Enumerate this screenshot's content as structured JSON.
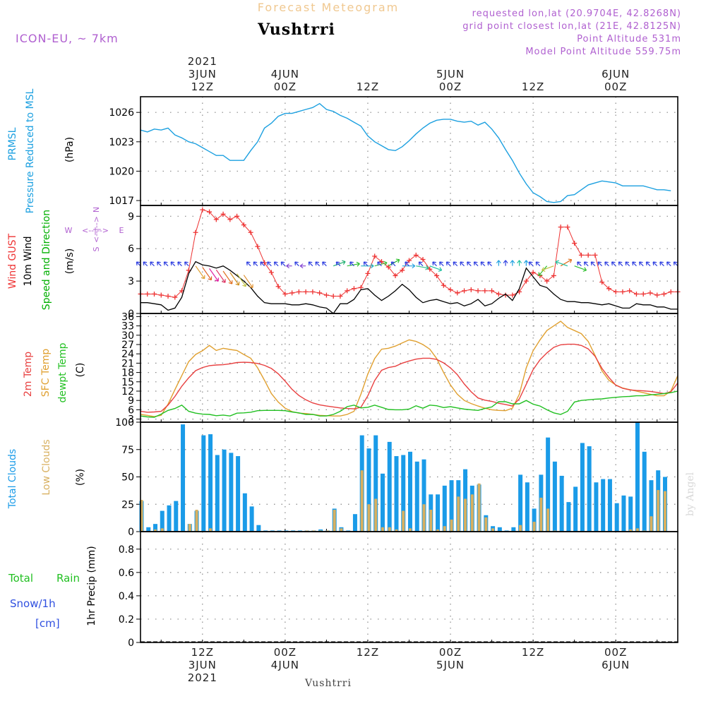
{
  "header": {
    "title_small": "Forecast Meteogram",
    "location": "Vushtrri",
    "model": "ICON-EU, ~ 7km",
    "requested": "requested lon,lat (20.9704E, 42.8268N)",
    "grid_point": "grid point closest lon,lat (21E, 42.8125N)",
    "point_altitude": "Point Altitude 531m",
    "model_altitude": "Model Point Altitude 559.75m",
    "footer_location": "Vushtrri",
    "watermark": "by Angel"
  },
  "time_axis": {
    "top_labels": [
      {
        "hour": 9,
        "lines": [
          "2021",
          "3JUN",
          "12Z"
        ]
      },
      {
        "hour": 21,
        "lines": [
          "4JUN",
          "00Z"
        ]
      },
      {
        "hour": 33,
        "lines": [
          "12Z"
        ]
      },
      {
        "hour": 45,
        "lines": [
          "5JUN",
          "00Z"
        ]
      },
      {
        "hour": 57,
        "lines": [
          "12Z"
        ]
      },
      {
        "hour": 69,
        "lines": [
          "6JUN",
          "00Z"
        ]
      }
    ],
    "bottom_labels": [
      {
        "hour": 9,
        "lines": [
          "12Z",
          "3JUN",
          "2021"
        ]
      },
      {
        "hour": 21,
        "lines": [
          "00Z",
          "4JUN"
        ]
      },
      {
        "hour": 33,
        "lines": [
          "12Z"
        ]
      },
      {
        "hour": 45,
        "lines": [
          "00Z",
          "5JUN"
        ]
      },
      {
        "hour": 57,
        "lines": [
          "12Z"
        ]
      },
      {
        "hour": 69,
        "lines": [
          "00Z",
          "6JUN"
        ]
      }
    ]
  },
  "colors": {
    "pressure": "#1ca0e0",
    "gust": "#ee3333",
    "wind": "#000000",
    "wind_dir_label": "#00b000",
    "temp2m": "#e84040",
    "sfc_temp": "#e0a030",
    "dewpt": "#22c022",
    "total_clouds": "#1a9be8",
    "low_clouds": "#d8b060",
    "rain_label": "#22c022",
    "snow_label": "#3050e0",
    "purple": "#b060d0",
    "header_orange": "#f0c890",
    "watermark": "#d8d8d8"
  },
  "labels": {
    "pressure": [
      "PRMSL",
      "Pressure Reduced to MSL"
    ],
    "pressure_unit": "(hPa)",
    "wind": [
      "Wind GUST",
      "10m Wind",
      "Speed and Direction"
    ],
    "wind_unit": "(m/s)",
    "compass": {
      "n": "N",
      "s": "S",
      "w": "W",
      "e": "E"
    },
    "temp": [
      "2m Temp",
      "SFC Temp",
      "dewpt Temp"
    ],
    "temp_unit": "(C)",
    "clouds": [
      "Total Clouds",
      "Low Clouds"
    ],
    "clouds_unit": "(%)",
    "precip": [
      "Total",
      "Rain",
      "Snow/1h",
      "[cm]"
    ],
    "precip_unit": "1hr Precip (mm)"
  },
  "chart_data": [
    {
      "type": "line",
      "name": "pressure",
      "series": [
        {
          "name": "PRMSL",
          "values": [
            1024.2,
            1024,
            1024.3,
            1024.2,
            1024.4,
            1023.7,
            1023.4,
            1023,
            1022.8,
            1022.4,
            1022,
            1021.6,
            1021.6,
            1021.1,
            1021.1,
            1021.1,
            1022.1,
            1023,
            1024.4,
            1024.9,
            1025.6,
            1025.9,
            1025.9,
            1026.1,
            1026.3,
            1026.5,
            1026.9,
            1026.3,
            1026.1,
            1025.7,
            1025.4,
            1025,
            1024.6,
            1023.6,
            1023,
            1022.6,
            1022.2,
            1022.1,
            1022.5,
            1023.1,
            1023.8,
            1024.4,
            1024.9,
            1025.2,
            1025.3,
            1025.3,
            1025.1,
            1025,
            1025.1,
            1024.7,
            1025,
            1024.3,
            1023.4,
            1022.2,
            1021.1,
            1019.8,
            1018.7,
            1017.8,
            1017.4,
            1016.9,
            1016.8,
            1016.9,
            1017.5,
            1017.6,
            1018.1,
            1018.6,
            1018.8,
            1019,
            1018.9,
            1018.8,
            1018.5,
            1018.5,
            1018.5,
            1018.5,
            1018.3,
            1018.1,
            1018.1,
            1018.0
          ]
        }
      ],
      "ylim": [
        1016.5,
        1027.6
      ],
      "yticks": [
        1017,
        1020,
        1023,
        1026
      ]
    },
    {
      "type": "line",
      "name": "wind",
      "series": [
        {
          "name": "Wind GUST",
          "values": [
            1.8,
            1.8,
            1.8,
            1.7,
            1.6,
            1.5,
            2.1,
            4.0,
            7.5,
            9.6,
            9.4,
            8.7,
            9.2,
            8.7,
            9,
            8.2,
            7.5,
            6.2,
            4.7,
            3.8,
            2.5,
            1.8,
            1.9,
            2.0,
            2.0,
            2.0,
            1.9,
            1.7,
            1.6,
            1.6,
            2.1,
            2.3,
            2.4,
            3.7,
            5.3,
            4.8,
            4.3,
            3.5,
            4.0,
            4.9,
            5.4,
            5.0,
            4.1,
            3.5,
            2.6,
            2.2,
            1.9,
            2.1,
            2.2,
            2.1,
            2.1,
            2.1,
            1.8,
            1.7,
            1.7,
            2.0,
            3.0,
            3.8,
            3.5,
            3.0,
            3.5,
            8.0,
            8.0,
            6.5,
            5.4,
            5.4,
            5.4,
            2.9,
            2.3,
            2.0,
            2.0,
            2.1,
            1.8,
            1.8,
            1.9,
            1.7,
            1.8,
            2.0,
            2.0
          ]
        },
        {
          "name": "10m Wind",
          "values": [
            1.0,
            1.0,
            0.9,
            0.8,
            0.3,
            0.5,
            1.5,
            3.7,
            4.8,
            4.5,
            4.4,
            4.2,
            4.4,
            4.0,
            3.5,
            3.0,
            2.4,
            1.6,
            1.0,
            0.9,
            0.9,
            0.9,
            0.8,
            0.8,
            0.9,
            0.8,
            0.6,
            0.5,
            0.0,
            0.9,
            0.9,
            1.3,
            2.2,
            2.3,
            1.7,
            1.2,
            1.6,
            2.1,
            2.7,
            2.2,
            1.5,
            1.0,
            1.2,
            1.3,
            1.1,
            0.9,
            1.0,
            0.7,
            0.9,
            1.3,
            0.7,
            0.9,
            1.4,
            1.8,
            1.2,
            2.3,
            4.2,
            3.4,
            2.6,
            2.4,
            1.8,
            1.3,
            1.1,
            1.1,
            1.0,
            1.0,
            0.9,
            0.8,
            0.9,
            0.7,
            0.5,
            0.5,
            0.9,
            0.8,
            0.8,
            0.6,
            0.6,
            0.4,
            0.4
          ]
        }
      ],
      "ylim": [
        0,
        10
      ],
      "yticks": [
        0,
        3,
        6,
        9
      ]
    },
    {
      "type": "line",
      "name": "temperature",
      "series": [
        {
          "name": "2m Temp",
          "values": [
            5.5,
            5.2,
            5.3,
            5.5,
            7.5,
            10.3,
            13.6,
            16.3,
            18.6,
            19.6,
            20.2,
            20.4,
            20.5,
            20.8,
            21.2,
            21.3,
            21.2,
            20.9,
            20.3,
            19.3,
            17.6,
            15.2,
            12.6,
            10.6,
            9.2,
            8.2,
            7.6,
            7.2,
            6.9,
            6.6,
            6.4,
            6.3,
            6.8,
            10.5,
            15.4,
            18.7,
            19.6,
            20,
            21,
            21.7,
            22.3,
            22.6,
            22.6,
            22.2,
            21.1,
            19.5,
            17.3,
            14.3,
            11.8,
            9.8,
            9.1,
            8.7,
            8.1,
            7.7,
            7.2,
            9.5,
            14.2,
            18.9,
            22.1,
            24.3,
            26.1,
            26.9,
            27.1,
            27.1,
            26.7,
            25.6,
            23.2,
            19.3,
            16.4,
            13.9,
            12.9,
            12.4,
            12.2,
            12.1,
            11.9,
            11.6,
            11.2,
            11.8,
            14.6
          ]
        },
        {
          "name": "SFC Temp",
          "values": [
            4.5,
            4.2,
            3.8,
            4.2,
            7.8,
            12.5,
            17.0,
            21.5,
            23.8,
            25.0,
            26.7,
            25.1,
            25.8,
            25.4,
            25.1,
            23.8,
            22.6,
            19.5,
            15.5,
            11.2,
            8.5,
            6.5,
            5.4,
            4.9,
            4.8,
            4.5,
            4.2,
            4.1,
            4.0,
            4.0,
            4.5,
            5.5,
            11.0,
            17.5,
            22.5,
            25.5,
            25.8,
            26.5,
            27.5,
            28.5,
            28.0,
            27.0,
            25.5,
            22.5,
            18.0,
            14.0,
            11.0,
            9.0,
            8.0,
            7.2,
            6.5,
            6.0,
            5.8,
            5.7,
            6.5,
            11.0,
            19.5,
            25.0,
            28.5,
            31.5,
            33.0,
            34.5,
            32.5,
            31.5,
            30.5,
            28.0,
            23.5,
            18.5,
            15.5,
            14.0,
            13.0,
            12.5,
            12.0,
            11.5,
            11.0,
            10.5,
            10.5,
            12.0,
            17.0
          ]
        },
        {
          "name": "dewpt Temp",
          "values": [
            4.0,
            3.7,
            3.6,
            4.6,
            5.8,
            6.4,
            7.5,
            5.5,
            4.9,
            4.6,
            4.5,
            4.1,
            4.3,
            4.0,
            4.9,
            5.0,
            5.2,
            5.7,
            5.8,
            5.8,
            5.8,
            5.7,
            5.3,
            5.0,
            4.5,
            4.5,
            4.0,
            4.0,
            4.5,
            5.5,
            7.0,
            7.5,
            6.6,
            6.8,
            7.5,
            6.8,
            6.1,
            6.0,
            6.0,
            6.2,
            7.3,
            6.5,
            7.5,
            7.3,
            6.7,
            7.0,
            6.6,
            6.2,
            6.0,
            5.8,
            6.4,
            6.9,
            8.6,
            8.6,
            7.9,
            7.9,
            9.0,
            7.8,
            7.2,
            6.0,
            5.0,
            4.5,
            5.5,
            8.5,
            9.0,
            9.2,
            9.4,
            9.5,
            9.8,
            10.0,
            10.2,
            10.3,
            10.5,
            10.5,
            10.8,
            11.0,
            11.2,
            11.5,
            12.0
          ]
        }
      ],
      "ylim": [
        2,
        37
      ],
      "yticks": [
        3,
        6,
        9,
        12,
        15,
        18,
        21,
        24,
        27,
        30,
        33,
        36
      ]
    },
    {
      "type": "bar",
      "name": "clouds",
      "series": [
        {
          "name": "Total Clouds",
          "values": [
            28,
            4,
            7,
            19,
            24,
            28,
            98,
            7,
            19,
            88,
            89,
            70,
            75,
            72,
            69,
            35,
            23,
            6,
            1,
            1,
            1,
            1,
            1,
            1,
            1,
            1,
            2,
            1,
            21,
            4,
            1,
            16,
            88,
            76,
            88,
            53,
            82,
            69,
            70,
            73,
            64,
            66,
            34,
            34,
            42,
            47,
            47,
            57,
            42,
            43,
            15,
            5,
            4,
            1,
            4,
            52,
            45,
            21,
            52,
            86,
            64,
            51,
            27,
            41,
            81,
            78,
            45,
            48,
            48,
            26,
            33,
            32,
            100,
            73,
            47,
            56,
            50
          ]
        },
        {
          "name": "Low Clouds",
          "values": [
            29,
            0,
            2,
            3,
            0,
            0,
            0,
            7,
            20,
            0,
            3,
            0,
            0,
            0,
            0,
            0,
            0,
            0,
            0,
            0,
            0,
            0,
            0,
            0,
            1,
            1,
            1,
            1,
            20,
            3,
            0,
            0,
            56,
            25,
            30,
            4,
            4,
            2,
            19,
            3,
            0,
            25,
            20,
            2,
            5,
            11,
            32,
            30,
            34,
            44,
            13,
            3,
            0,
            0,
            0,
            6,
            0,
            9,
            31,
            21,
            1,
            0,
            0,
            0,
            0,
            0,
            0,
            0,
            0,
            0,
            0,
            2,
            3,
            1,
            14,
            38,
            37
          ]
        }
      ],
      "ylim": [
        0,
        100
      ],
      "yticks": [
        0,
        25,
        50,
        75,
        100
      ]
    },
    {
      "type": "bar",
      "name": "precipitation",
      "series": [
        {
          "name": "1hr Precip",
          "values": []
        }
      ],
      "ylim": [
        0,
        0.95
      ],
      "yticks": [
        0,
        0.2,
        0.4,
        0.6,
        0.8
      ],
      "ytick_labels": [
        "0",
        "0.2",
        "0.4",
        "0.6",
        "0.8"
      ]
    }
  ]
}
